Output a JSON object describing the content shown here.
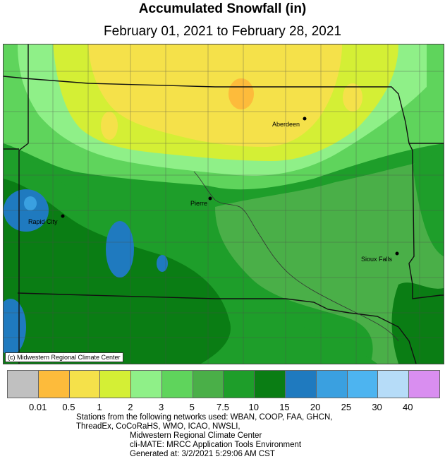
{
  "header": {
    "title": "Accumulated Snowfall (in)",
    "subtitle": "February 01, 2021 to February 28, 2021"
  },
  "map": {
    "credit": "(c) Midwestern Regional Climate Center",
    "cities": [
      {
        "name": "Aberdeen"
      },
      {
        "name": "Pierre"
      },
      {
        "name": "Rapid City"
      },
      {
        "name": "Sioux Falls"
      }
    ],
    "colors": {
      "lt05": "#fdbb3b",
      "c05_1": "#f5e14a",
      "c1_2": "#d4ef35",
      "c2_3": "#8ff088",
      "c3_5": "#5fd45c",
      "c5_75": "#4aaf48",
      "c75_10": "#1e9e2a",
      "c10_15": "#0a7d14",
      "c15_20": "#1f7abf",
      "c20_25": "#3aa0e0"
    }
  },
  "legend": {
    "swatches": [
      "#c0c0c0",
      "#fdbb3b",
      "#f5e14a",
      "#d4ef35",
      "#8ff088",
      "#5fd45c",
      "#4aaf48",
      "#1e9e2a",
      "#0a7d14",
      "#1f7abf",
      "#3aa0e0",
      "#4db4f0",
      "#b6dcf8",
      "#d98ef0"
    ],
    "ticks": [
      "0.01",
      "0.5",
      "1",
      "2",
      "3",
      "5",
      "7.5",
      "10",
      "15",
      "20",
      "25",
      "30",
      "40"
    ]
  },
  "footer": {
    "line1": "Stations from the following networks used:  WBAN, COOP, FAA, GHCN,",
    "line2": "ThreadEx, CoCoRaHS, WMO, ICAO, NWSLI,",
    "line3": "Midwestern Regional Climate Center",
    "line4": "cli-MATE: MRCC Application Tools Environment",
    "line5": "Generated at: 3/2/2021 5:29:06 AM CST"
  }
}
